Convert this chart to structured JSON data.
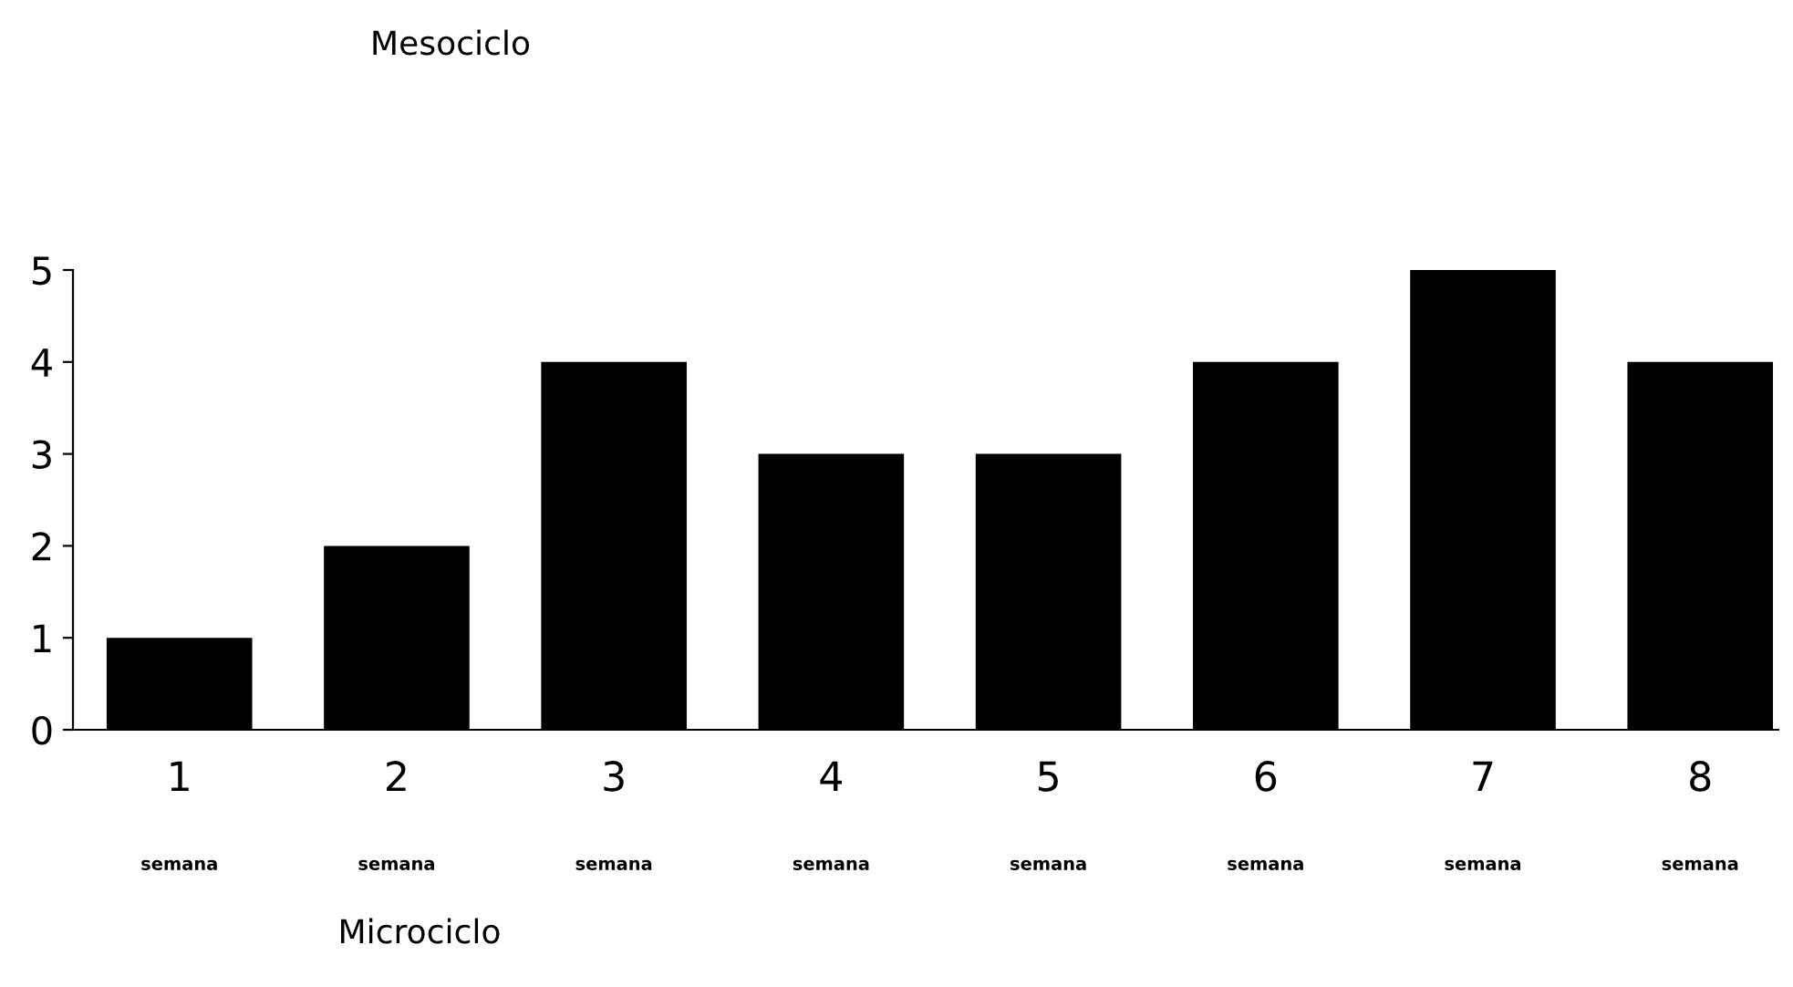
{
  "chart_data": {
    "type": "bar",
    "title": "Mesociclo",
    "xlabel": "Microciclo",
    "categories": [
      "1",
      "2",
      "3",
      "4",
      "5",
      "6",
      "7",
      "8"
    ],
    "values": [
      1,
      2,
      4,
      3,
      3,
      4,
      5,
      4
    ],
    "color": "#000000",
    "ylim": [
      0,
      5
    ],
    "yticks": [
      0,
      1,
      2,
      3,
      4,
      5
    ],
    "grid": false,
    "annotations": [
      "semana",
      "semana",
      "semana",
      "semana",
      "semana",
      "semana",
      "semana",
      "semana"
    ]
  }
}
